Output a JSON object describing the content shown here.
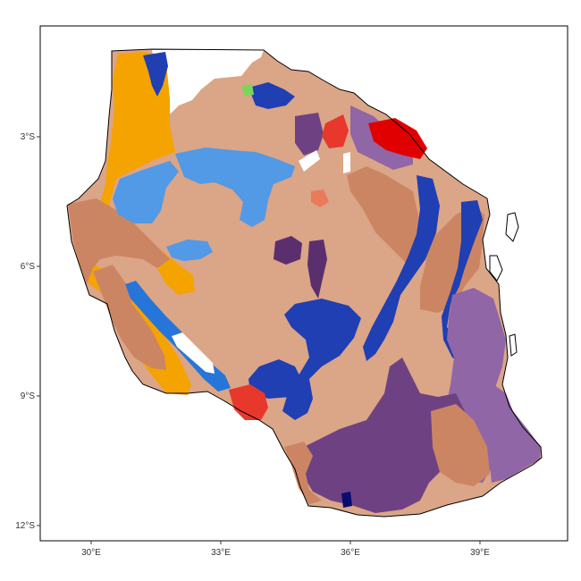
{
  "map": {
    "x_axis": {
      "ticks": [
        {
          "value": 30,
          "label": "30°E"
        },
        {
          "value": 33,
          "label": "33°E"
        },
        {
          "value": 36,
          "label": "36°E"
        },
        {
          "value": 39,
          "label": "39°E"
        }
      ]
    },
    "y_axis": {
      "ticks": [
        {
          "value": -3,
          "label": "3°S"
        },
        {
          "value": -6,
          "label": "6°S"
        },
        {
          "value": -9,
          "label": "9°S"
        },
        {
          "value": -12,
          "label": "12°S"
        }
      ]
    },
    "colors": {
      "background": "#ffffff",
      "panel_border": "#000000",
      "country_outline": "#000000",
      "light_tan": "#dba587",
      "terracotta": "#cc8563",
      "orange": "#f4a300",
      "sky_blue": "#5299e6",
      "royal_blue": "#1f3fb3",
      "mid_blue": "#2676d9",
      "dark_purple": "#6e4282",
      "light_purple": "#9166a6",
      "deep_purple": "#5b2f6e",
      "red": "#e8382d",
      "bright_red": "#e00000",
      "salmon": "#ea7a5a",
      "green": "#7cd55b",
      "navy": "#0b0c6e"
    }
  }
}
